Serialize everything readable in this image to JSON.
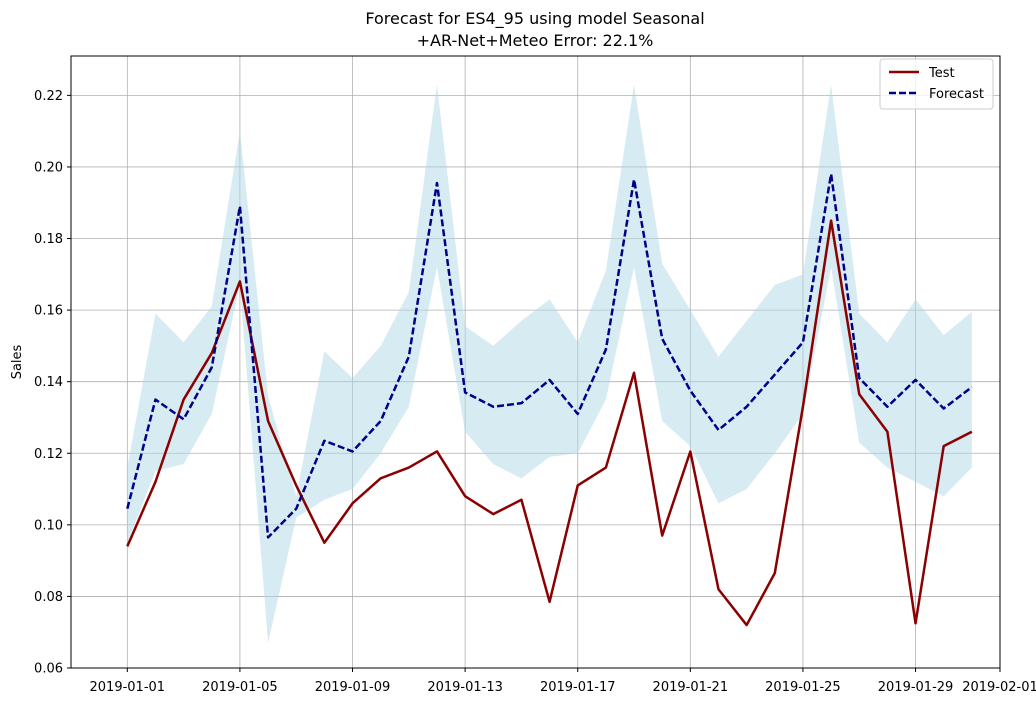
{
  "chart_data": {
    "type": "line",
    "title_line1": "Forecast for ES4_95 using model Seasonal",
    "title_line2": "+AR-Net+Meteo Error: 22.1%",
    "xlabel": "",
    "ylabel": "Sales",
    "x_start": "2019-01-01",
    "x_end": "2019-01-31",
    "xlim": [
      "2018-12-30",
      "2019-02-01"
    ],
    "ylim": [
      0.06,
      0.231
    ],
    "grid": true,
    "legend_position": "top-right",
    "x_ticks": [
      "2019-01-01",
      "2019-01-05",
      "2019-01-09",
      "2019-01-13",
      "2019-01-17",
      "2019-01-21",
      "2019-01-25",
      "2019-01-29",
      "2019-02-01"
    ],
    "y_ticks": [
      "0.06",
      "0.08",
      "0.10",
      "0.12",
      "0.14",
      "0.16",
      "0.18",
      "0.20",
      "0.22"
    ],
    "series": [
      {
        "name": "Test",
        "color": "#8b0000",
        "style": "solid",
        "values": [
          0.094,
          0.112,
          0.135,
          0.148,
          0.168,
          0.129,
          0.111,
          0.095,
          0.106,
          0.113,
          0.116,
          0.1205,
          0.108,
          0.103,
          0.107,
          0.0785,
          0.111,
          0.116,
          0.1425,
          0.097,
          0.1205,
          0.082,
          0.072,
          0.0865,
          0.133,
          0.185,
          0.1365,
          0.126,
          0.0725,
          0.122,
          0.126
        ]
      },
      {
        "name": "Forecast",
        "color": "#00008b",
        "style": "dashed",
        "values": [
          0.1045,
          0.135,
          0.1295,
          0.144,
          0.189,
          0.0965,
          0.1045,
          0.1235,
          0.1205,
          0.129,
          0.147,
          0.1955,
          0.137,
          0.133,
          0.134,
          0.1405,
          0.131,
          0.149,
          0.1965,
          0.152,
          0.1375,
          0.1265,
          0.133,
          0.142,
          0.151,
          0.198,
          0.141,
          0.133,
          0.1405,
          0.1325,
          0.1385
        ]
      }
    ],
    "band": {
      "color": "#add8e6",
      "upper": [
        0.116,
        0.159,
        0.151,
        0.161,
        0.21,
        0.136,
        0.108,
        0.1485,
        0.141,
        0.15,
        0.165,
        0.223,
        0.1555,
        0.15,
        0.157,
        0.163,
        0.151,
        0.171,
        0.223,
        0.173,
        0.16,
        0.147,
        0.157,
        0.167,
        0.17,
        0.223,
        0.159,
        0.151,
        0.163,
        0.153,
        0.1595
      ],
      "lower": [
        0.095,
        0.115,
        0.117,
        0.131,
        0.167,
        0.067,
        0.102,
        0.107,
        0.11,
        0.12,
        0.133,
        0.172,
        0.126,
        0.117,
        0.113,
        0.119,
        0.12,
        0.135,
        0.172,
        0.129,
        0.122,
        0.106,
        0.11,
        0.12,
        0.131,
        0.172,
        0.123,
        0.116,
        0.112,
        0.108,
        0.116
      ]
    }
  }
}
